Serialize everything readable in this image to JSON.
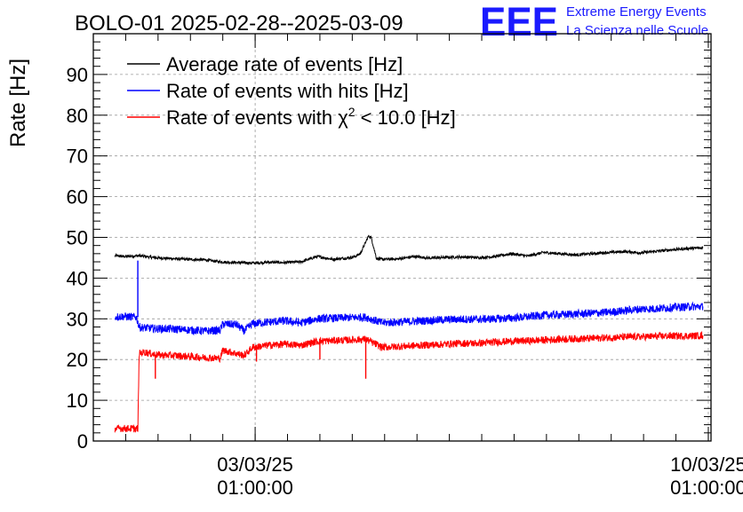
{
  "header": {
    "title": "BOLO-01 2025-02-28--2025-03-09",
    "logo_text": "EEE",
    "org_line1": "Extreme Energy Events",
    "org_line2": "La Scienza nelle Scuole"
  },
  "colors": {
    "axis": "#000000",
    "grid": "#9a9a9a",
    "logo": "#1a1aff",
    "org_text": "#1a1aff"
  },
  "chart_data": {
    "type": "line",
    "title": "BOLO-01 2025-02-28--2025-03-09",
    "ylabel": "Rate [Hz]",
    "xlabel": "",
    "x_axis": "time (days)",
    "xlim": [
      "2025-02-28 13:00",
      "2025-03-10 02:00"
    ],
    "ylim": [
      0,
      100
    ],
    "y_ticks": [
      0,
      10,
      20,
      30,
      40,
      50,
      60,
      70,
      80,
      90
    ],
    "x_ticks": [
      {
        "at": "2025-03-03 01:00:00",
        "date": "03/03/25",
        "time": "01:00:00"
      },
      {
        "at": "2025-03-10 01:00:00",
        "date": "10/03/25",
        "time": "01:00:00"
      }
    ],
    "grid": true,
    "legend_position": "top-left",
    "series": [
      {
        "name": "Average rate of events [Hz]",
        "color": "#000000",
        "x": [
          "2025-02-28 21:00",
          "2025-03-01 00:00",
          "2025-03-01 03:00",
          "2025-03-01 06:00",
          "2025-03-01 12:00",
          "2025-03-01 18:00",
          "2025-03-02 00:00",
          "2025-03-02 06:00",
          "2025-03-02 12:00",
          "2025-03-02 18:00",
          "2025-03-03 00:00",
          "2025-03-03 06:00",
          "2025-03-03 12:00",
          "2025-03-03 18:00",
          "2025-03-04 00:00",
          "2025-03-04 06:00",
          "2025-03-04 12:00",
          "2025-03-04 14:00",
          "2025-03-04 16:00",
          "2025-03-04 19:00",
          "2025-03-04 20:00",
          "2025-03-04 22:00",
          "2025-03-05 00:00",
          "2025-03-05 06:00",
          "2025-03-05 12:00",
          "2025-03-05 18:00",
          "2025-03-06 00:00",
          "2025-03-06 06:00",
          "2025-03-06 12:00",
          "2025-03-06 18:00",
          "2025-03-07 00:00",
          "2025-03-07 06:00",
          "2025-03-07 12:00",
          "2025-03-07 18:00",
          "2025-03-08 00:00",
          "2025-03-08 06:00",
          "2025-03-08 12:00",
          "2025-03-08 18:00",
          "2025-03-09 00:00",
          "2025-03-09 06:00",
          "2025-03-09 12:00",
          "2025-03-09 18:00",
          "2025-03-09 23:00"
        ],
        "y": [
          45.5,
          45.3,
          45.4,
          45.5,
          45.0,
          44.8,
          44.6,
          44.5,
          44.0,
          43.8,
          43.7,
          43.9,
          43.8,
          44.0,
          45.3,
          44.6,
          45.0,
          45.3,
          46.0,
          50.3,
          50.0,
          44.8,
          44.6,
          44.7,
          45.3,
          44.9,
          45.1,
          45.2,
          45.0,
          45.3,
          46.0,
          45.4,
          46.3,
          46.0,
          45.7,
          46.0,
          46.3,
          46.5,
          46.2,
          46.6,
          47.0,
          47.3,
          47.4
        ],
        "noise": 0.35
      },
      {
        "name": "Rate of events with hits [Hz]",
        "color": "#0000ff",
        "x": [
          "2025-02-28 21:00",
          "2025-03-01 00:00",
          "2025-03-01 05:00",
          "2025-03-01 06:00",
          "2025-03-01 08:00",
          "2025-03-01 12:00",
          "2025-03-01 18:00",
          "2025-03-02 00:00",
          "2025-03-02 06:00",
          "2025-03-02 12:00",
          "2025-03-02 13:00",
          "2025-03-02 18:00",
          "2025-03-02 21:00",
          "2025-03-03 00:00",
          "2025-03-03 06:00",
          "2025-03-03 12:00",
          "2025-03-03 18:00",
          "2025-03-04 00:00",
          "2025-03-04 12:00",
          "2025-03-04 18:00",
          "2025-03-05 00:00",
          "2025-03-05 06:00",
          "2025-03-05 12:00",
          "2025-03-05 18:00",
          "2025-03-06 00:00",
          "2025-03-06 06:00",
          "2025-03-06 12:00",
          "2025-03-06 18:00",
          "2025-03-07 00:00",
          "2025-03-07 06:00",
          "2025-03-07 12:00",
          "2025-03-07 18:00",
          "2025-03-08 00:00",
          "2025-03-08 06:00",
          "2025-03-08 12:00",
          "2025-03-08 18:00",
          "2025-03-09 00:00",
          "2025-03-09 06:00",
          "2025-03-09 12:00",
          "2025-03-09 18:00",
          "2025-03-09 23:00"
        ],
        "y": [
          30.5,
          30.6,
          30.4,
          28.0,
          27.8,
          27.6,
          27.5,
          27.3,
          27.0,
          27.2,
          28.7,
          28.6,
          27.0,
          28.8,
          29.2,
          29.5,
          29.0,
          30.0,
          30.3,
          30.4,
          29.0,
          29.2,
          29.4,
          29.6,
          29.8,
          29.9,
          29.9,
          30.0,
          30.2,
          30.5,
          30.9,
          31.0,
          31.2,
          31.4,
          31.6,
          32.0,
          32.4,
          32.5,
          32.8,
          33.0,
          33.0
        ],
        "noise": 1.0,
        "spikes": [
          {
            "x": "2025-03-01 05:30",
            "y": 44.3
          }
        ]
      },
      {
        "name": "Rate of events with χ² < 10.0 [Hz]",
        "color": "#ff0000",
        "x": [
          "2025-02-28 21:00",
          "2025-03-01 00:00",
          "2025-03-01 05:30",
          "2025-03-01 06:00",
          "2025-03-01 08:00",
          "2025-03-01 12:00",
          "2025-03-01 18:00",
          "2025-03-02 00:00",
          "2025-03-02 06:00",
          "2025-03-02 12:00",
          "2025-03-02 13:00",
          "2025-03-02 18:00",
          "2025-03-02 21:00",
          "2025-03-03 00:00",
          "2025-03-03 06:00",
          "2025-03-03 12:00",
          "2025-03-03 18:00",
          "2025-03-04 00:00",
          "2025-03-04 12:00",
          "2025-03-04 18:00",
          "2025-03-05 00:00",
          "2025-03-05 06:00",
          "2025-03-05 12:00",
          "2025-03-05 18:00",
          "2025-03-06 00:00",
          "2025-03-06 06:00",
          "2025-03-06 12:00",
          "2025-03-06 18:00",
          "2025-03-07 00:00",
          "2025-03-07 06:00",
          "2025-03-07 12:00",
          "2025-03-07 18:00",
          "2025-03-08 00:00",
          "2025-03-08 06:00",
          "2025-03-08 12:00",
          "2025-03-08 18:00",
          "2025-03-09 00:00",
          "2025-03-09 06:00",
          "2025-03-09 12:00",
          "2025-03-09 18:00",
          "2025-03-09 23:00"
        ],
        "y": [
          3.0,
          3.1,
          3.0,
          21.5,
          21.8,
          21.2,
          21.0,
          20.8,
          20.5,
          20.3,
          22.3,
          21.5,
          21.0,
          23.0,
          23.5,
          23.8,
          23.5,
          24.5,
          24.8,
          25.0,
          23.0,
          23.2,
          23.4,
          23.6,
          23.8,
          24.0,
          24.0,
          24.3,
          24.5,
          24.6,
          24.8,
          25.0,
          25.1,
          25.2,
          25.4,
          25.5,
          25.6,
          25.7,
          25.8,
          25.8,
          25.9
        ],
        "noise": 0.9,
        "spikes": [
          {
            "x": "2025-03-01 12:00",
            "y": 15.3
          },
          {
            "x": "2025-03-04 18:00",
            "y": 15.3
          },
          {
            "x": "2025-03-04 01:00",
            "y": 20.0
          },
          {
            "x": "2025-03-03 01:30",
            "y": 19.5
          }
        ]
      }
    ]
  }
}
